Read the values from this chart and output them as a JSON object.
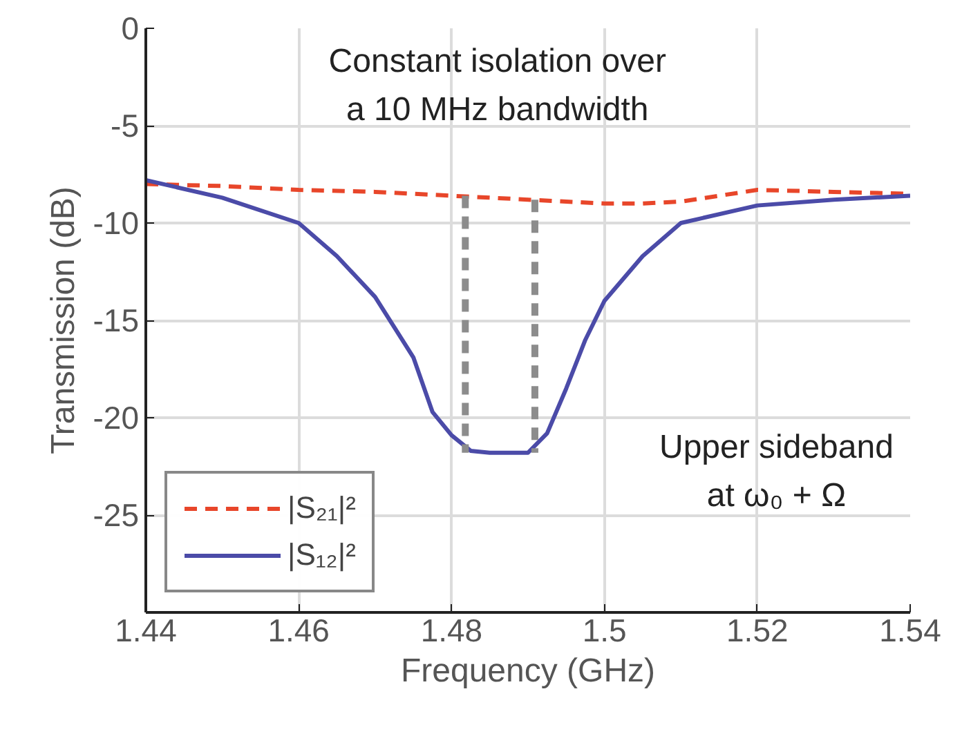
{
  "chart_data": {
    "type": "line",
    "xlabel": "Frequency (GHz)",
    "ylabel": "Transmission (dB)",
    "xlim": [
      1.44,
      1.54
    ],
    "ylim": [
      -30,
      0
    ],
    "xticks": [
      1.44,
      1.46,
      1.48,
      {
        "value": 1.5,
        "label": "1.5"
      },
      1.52,
      1.54
    ],
    "yticks": [
      0,
      -5,
      -10,
      -15,
      -20,
      -25
    ],
    "grid": true,
    "legend": "bottom left",
    "line_style": "solid",
    "marker": "none",
    "series": [
      {
        "name": "|S₂₁|²",
        "color": "#e8462a",
        "line_style": "dashed",
        "x": [
          1.44,
          1.45,
          1.46,
          1.47,
          1.48,
          1.49,
          1.5,
          1.505,
          1.51,
          1.515,
          1.52,
          1.53,
          1.54
        ],
        "values": [
          -8.0,
          -8.1,
          -8.3,
          -8.4,
          -8.6,
          -8.8,
          -9.0,
          -9.0,
          -8.9,
          -8.6,
          -8.3,
          -8.4,
          -8.5
        ]
      },
      {
        "name": "|S₁₂|²",
        "color": "#4b4ba8",
        "x": [
          1.44,
          1.45,
          1.46,
          1.465,
          1.47,
          1.475,
          1.4775,
          1.48,
          1.4825,
          1.485,
          1.4875,
          1.49,
          1.4925,
          1.495,
          1.4975,
          1.5,
          1.505,
          1.51,
          1.52,
          1.53,
          1.54
        ],
        "values": [
          -7.8,
          -8.7,
          -10.0,
          -11.7,
          -13.8,
          -16.9,
          -19.7,
          -20.9,
          -21.7,
          -21.8,
          -21.8,
          -21.8,
          -20.8,
          -18.5,
          -16.0,
          -14.0,
          -11.7,
          -10.0,
          -9.1,
          -8.8,
          -8.6
        ]
      },
      {
        "color": "#8c8c8c",
        "line_style": "dashed",
        "x": [
          1.4818,
          1.4818
        ],
        "values": [
          -8.6,
          -21.8
        ]
      },
      {
        "color": "#8c8c8c",
        "line_style": "dashed",
        "x": [
          1.4909,
          1.4909
        ],
        "values": [
          -8.8,
          -21.8
        ]
      }
    ],
    "annotations": [
      "Constant isolation over\na 10 MHz bandwidth",
      "Upper sideband\nat ω₀ + Ω"
    ]
  }
}
